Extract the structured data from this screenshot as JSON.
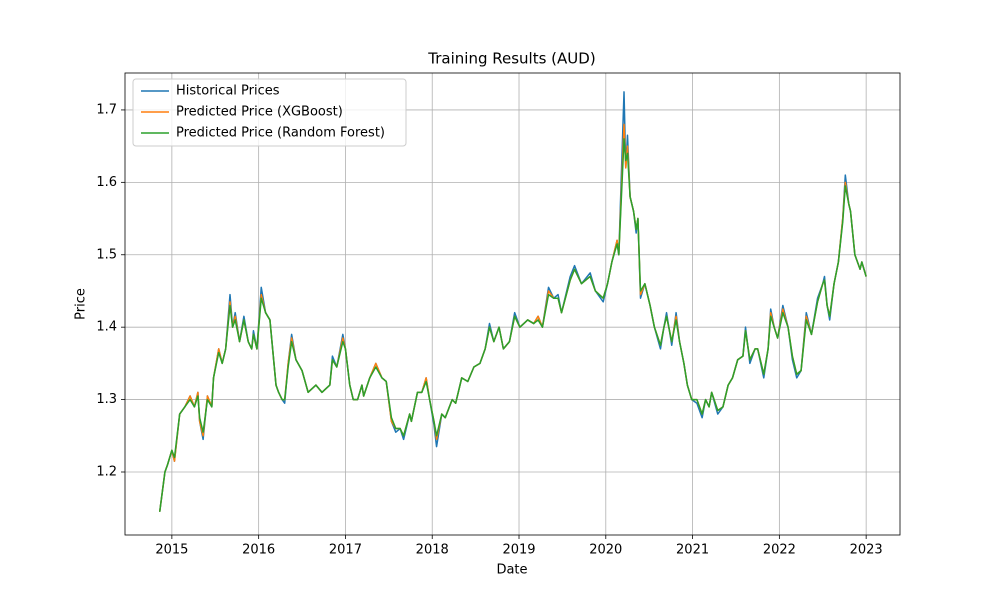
{
  "chart_data": {
    "type": "line",
    "title": "Training Results (AUD)",
    "x_label": "Date",
    "y_label": "Price",
    "x": [
      2014.86,
      2014.92,
      2014.95,
      2015.0,
      2015.03,
      2015.09,
      2015.15,
      2015.21,
      2015.26,
      2015.3,
      2015.32,
      2015.36,
      2015.41,
      2015.46,
      2015.48,
      2015.54,
      2015.58,
      2015.62,
      2015.67,
      2015.7,
      2015.73,
      2015.78,
      2015.83,
      2015.88,
      2015.92,
      2015.94,
      2015.98,
      2016.03,
      2016.08,
      2016.13,
      2016.2,
      2016.23,
      2016.27,
      2016.3,
      2016.34,
      2016.38,
      2016.43,
      2016.5,
      2016.57,
      2016.66,
      2016.73,
      2016.82,
      2016.85,
      2016.9,
      2016.97,
      2017.0,
      2017.05,
      2017.09,
      2017.14,
      2017.19,
      2017.21,
      2017.28,
      2017.35,
      2017.42,
      2017.47,
      2017.53,
      2017.58,
      2017.63,
      2017.67,
      2017.74,
      2017.76,
      2017.83,
      2017.88,
      2017.93,
      2017.97,
      2018.02,
      2018.05,
      2018.11,
      2018.15,
      2018.23,
      2018.27,
      2018.34,
      2018.41,
      2018.48,
      2018.55,
      2018.61,
      2018.66,
      2018.71,
      2018.77,
      2018.82,
      2018.89,
      2018.95,
      2019.01,
      2019.1,
      2019.17,
      2019.22,
      2019.27,
      2019.34,
      2019.4,
      2019.45,
      2019.49,
      2019.59,
      2019.64,
      2019.72,
      2019.82,
      2019.88,
      2019.97,
      2020.02,
      2020.07,
      2020.13,
      2020.15,
      2020.21,
      2020.23,
      2020.25,
      2020.28,
      2020.32,
      2020.35,
      2020.37,
      2020.4,
      2020.45,
      2020.51,
      2020.56,
      2020.63,
      2020.67,
      2020.7,
      2020.76,
      2020.81,
      2020.85,
      2020.9,
      2020.94,
      2020.99,
      2021.05,
      2021.11,
      2021.15,
      2021.19,
      2021.22,
      2021.29,
      2021.35,
      2021.41,
      2021.46,
      2021.52,
      2021.58,
      2021.61,
      2021.66,
      2021.72,
      2021.75,
      2021.82,
      2021.87,
      2021.9,
      2021.94,
      2021.98,
      2022.04,
      2022.1,
      2022.15,
      2022.2,
      2022.25,
      2022.31,
      2022.37,
      2022.44,
      2022.5,
      2022.52,
      2022.55,
      2022.58,
      2022.63,
      2022.68,
      2022.73,
      2022.76,
      2022.8,
      2022.82,
      2022.87,
      2022.93,
      2022.95,
      2023.0
    ],
    "series": [
      {
        "name": "Historical Prices",
        "color": "#1f77b4",
        "values": [
          1.145,
          1.2,
          1.21,
          1.23,
          1.215,
          1.28,
          1.29,
          1.305,
          1.29,
          1.31,
          1.27,
          1.245,
          1.305,
          1.29,
          1.33,
          1.37,
          1.35,
          1.37,
          1.445,
          1.4,
          1.42,
          1.38,
          1.415,
          1.38,
          1.37,
          1.395,
          1.37,
          1.455,
          1.42,
          1.41,
          1.32,
          1.31,
          1.3,
          1.295,
          1.35,
          1.39,
          1.355,
          1.34,
          1.31,
          1.32,
          1.31,
          1.32,
          1.36,
          1.345,
          1.39,
          1.37,
          1.32,
          1.3,
          1.3,
          1.32,
          1.305,
          1.33,
          1.35,
          1.33,
          1.325,
          1.27,
          1.255,
          1.26,
          1.245,
          1.28,
          1.27,
          1.31,
          1.31,
          1.33,
          1.3,
          1.265,
          1.235,
          1.28,
          1.275,
          1.3,
          1.295,
          1.33,
          1.325,
          1.345,
          1.35,
          1.37,
          1.405,
          1.38,
          1.4,
          1.37,
          1.38,
          1.42,
          1.4,
          1.41,
          1.405,
          1.415,
          1.4,
          1.455,
          1.44,
          1.445,
          1.42,
          1.47,
          1.485,
          1.46,
          1.475,
          1.45,
          1.435,
          1.46,
          1.49,
          1.52,
          1.5,
          1.725,
          1.62,
          1.665,
          1.58,
          1.56,
          1.53,
          1.55,
          1.44,
          1.46,
          1.43,
          1.4,
          1.37,
          1.4,
          1.42,
          1.375,
          1.42,
          1.38,
          1.35,
          1.32,
          1.3,
          1.295,
          1.275,
          1.3,
          1.29,
          1.31,
          1.28,
          1.29,
          1.32,
          1.33,
          1.355,
          1.36,
          1.4,
          1.35,
          1.37,
          1.37,
          1.33,
          1.37,
          1.425,
          1.4,
          1.385,
          1.43,
          1.4,
          1.355,
          1.33,
          1.34,
          1.42,
          1.39,
          1.44,
          1.46,
          1.47,
          1.43,
          1.41,
          1.46,
          1.49,
          1.55,
          1.61,
          1.57,
          1.56,
          1.5,
          1.48,
          1.49,
          1.47
        ]
      },
      {
        "name": "Predicted Price (XGBoost)",
        "color": "#ff7f0e",
        "values": [
          1.145,
          1.2,
          1.21,
          1.23,
          1.215,
          1.28,
          1.29,
          1.305,
          1.29,
          1.31,
          1.27,
          1.25,
          1.305,
          1.29,
          1.33,
          1.37,
          1.35,
          1.37,
          1.435,
          1.4,
          1.415,
          1.38,
          1.41,
          1.38,
          1.37,
          1.39,
          1.37,
          1.445,
          1.42,
          1.41,
          1.32,
          1.31,
          1.3,
          1.3,
          1.35,
          1.385,
          1.355,
          1.34,
          1.31,
          1.32,
          1.31,
          1.32,
          1.355,
          1.345,
          1.385,
          1.37,
          1.32,
          1.3,
          1.3,
          1.32,
          1.305,
          1.33,
          1.35,
          1.33,
          1.325,
          1.27,
          1.26,
          1.26,
          1.25,
          1.28,
          1.27,
          1.31,
          1.31,
          1.33,
          1.3,
          1.27,
          1.245,
          1.28,
          1.275,
          1.3,
          1.295,
          1.33,
          1.325,
          1.345,
          1.35,
          1.37,
          1.4,
          1.38,
          1.4,
          1.37,
          1.38,
          1.415,
          1.4,
          1.41,
          1.405,
          1.415,
          1.4,
          1.45,
          1.44,
          1.44,
          1.42,
          1.465,
          1.48,
          1.46,
          1.47,
          1.45,
          1.44,
          1.46,
          1.49,
          1.52,
          1.5,
          1.68,
          1.62,
          1.65,
          1.58,
          1.56,
          1.535,
          1.55,
          1.445,
          1.46,
          1.43,
          1.4,
          1.375,
          1.4,
          1.415,
          1.38,
          1.415,
          1.38,
          1.35,
          1.32,
          1.3,
          1.3,
          1.28,
          1.3,
          1.29,
          1.31,
          1.285,
          1.29,
          1.32,
          1.33,
          1.355,
          1.36,
          1.395,
          1.355,
          1.37,
          1.37,
          1.335,
          1.37,
          1.42,
          1.4,
          1.385,
          1.425,
          1.4,
          1.36,
          1.335,
          1.34,
          1.415,
          1.39,
          1.435,
          1.46,
          1.465,
          1.43,
          1.415,
          1.46,
          1.49,
          1.55,
          1.6,
          1.57,
          1.56,
          1.5,
          1.48,
          1.49,
          1.47
        ]
      },
      {
        "name": "Predicted Price (Random Forest)",
        "color": "#2ca02c",
        "values": [
          1.145,
          1.2,
          1.21,
          1.23,
          1.22,
          1.28,
          1.29,
          1.3,
          1.29,
          1.305,
          1.275,
          1.255,
          1.3,
          1.29,
          1.33,
          1.365,
          1.35,
          1.37,
          1.43,
          1.4,
          1.41,
          1.38,
          1.41,
          1.38,
          1.37,
          1.39,
          1.37,
          1.44,
          1.42,
          1.41,
          1.32,
          1.31,
          1.3,
          1.3,
          1.345,
          1.38,
          1.355,
          1.34,
          1.31,
          1.32,
          1.31,
          1.32,
          1.355,
          1.345,
          1.38,
          1.37,
          1.32,
          1.3,
          1.3,
          1.32,
          1.305,
          1.33,
          1.345,
          1.33,
          1.325,
          1.275,
          1.26,
          1.26,
          1.25,
          1.28,
          1.27,
          1.31,
          1.31,
          1.325,
          1.3,
          1.27,
          1.25,
          1.28,
          1.275,
          1.3,
          1.295,
          1.33,
          1.325,
          1.345,
          1.35,
          1.37,
          1.4,
          1.38,
          1.4,
          1.37,
          1.38,
          1.415,
          1.4,
          1.41,
          1.405,
          1.41,
          1.4,
          1.445,
          1.44,
          1.44,
          1.42,
          1.465,
          1.48,
          1.46,
          1.47,
          1.45,
          1.44,
          1.46,
          1.49,
          1.515,
          1.5,
          1.66,
          1.63,
          1.64,
          1.58,
          1.56,
          1.535,
          1.55,
          1.45,
          1.46,
          1.43,
          1.4,
          1.375,
          1.4,
          1.415,
          1.38,
          1.41,
          1.38,
          1.35,
          1.32,
          1.3,
          1.3,
          1.28,
          1.3,
          1.29,
          1.31,
          1.285,
          1.29,
          1.32,
          1.33,
          1.355,
          1.36,
          1.395,
          1.355,
          1.37,
          1.37,
          1.335,
          1.37,
          1.415,
          1.4,
          1.385,
          1.42,
          1.4,
          1.36,
          1.335,
          1.34,
          1.41,
          1.39,
          1.435,
          1.46,
          1.465,
          1.43,
          1.415,
          1.46,
          1.49,
          1.545,
          1.595,
          1.57,
          1.56,
          1.5,
          1.48,
          1.49,
          1.47
        ]
      }
    ],
    "xlim": [
      2014.46,
      2023.39
    ],
    "xticks": [
      2015,
      2016,
      2017,
      2018,
      2019,
      2020,
      2021,
      2022,
      2023
    ],
    "ylim": [
      1.113,
      1.751
    ],
    "yticks": [
      1.2,
      1.3,
      1.4,
      1.5,
      1.6,
      1.7
    ],
    "grid": true,
    "legend": "upper left"
  }
}
